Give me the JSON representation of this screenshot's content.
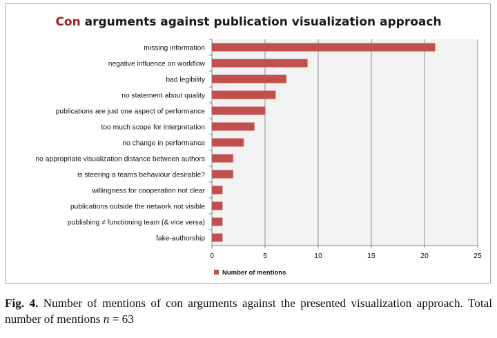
{
  "chart_data": {
    "type": "bar",
    "orientation": "horizontal",
    "title_accent": "Con",
    "title_rest": " arguments against publication visualization approach",
    "categories": [
      "missing information",
      "negative influence on workflow",
      "bad legibility",
      "no statement about quality",
      "publications are just one aspect of performance",
      "too much scope for interpretation",
      "no change in performance",
      "no appropriate visualization distance between authors",
      "is steering a teams behaviour desirable?",
      "willingness for cooperation not clear",
      "publications outside the network not visible",
      "publishing ≠ functioning team (& vice versa)",
      "fake-authorship"
    ],
    "series": [
      {
        "name": "Number of mentions",
        "values": [
          21,
          9,
          7,
          6,
          5,
          4,
          3,
          2,
          2,
          1,
          1,
          1,
          1
        ]
      }
    ],
    "xlim": [
      0,
      25
    ],
    "xticks": [
      0,
      5,
      10,
      15,
      20,
      25
    ],
    "grid": true,
    "legend": "bottom-left",
    "colors": {
      "bar": "#c0504d",
      "plot_bg": "#f2f2f2",
      "grid": "#8c8c8c",
      "accent_title": "#a21e1e"
    }
  },
  "caption": {
    "label": "Fig. 4.",
    "text_before": " Number of mentions of con arguments against the presented visualization approach. Total number of mentions ",
    "var": "n",
    "text_after": " = 63"
  }
}
